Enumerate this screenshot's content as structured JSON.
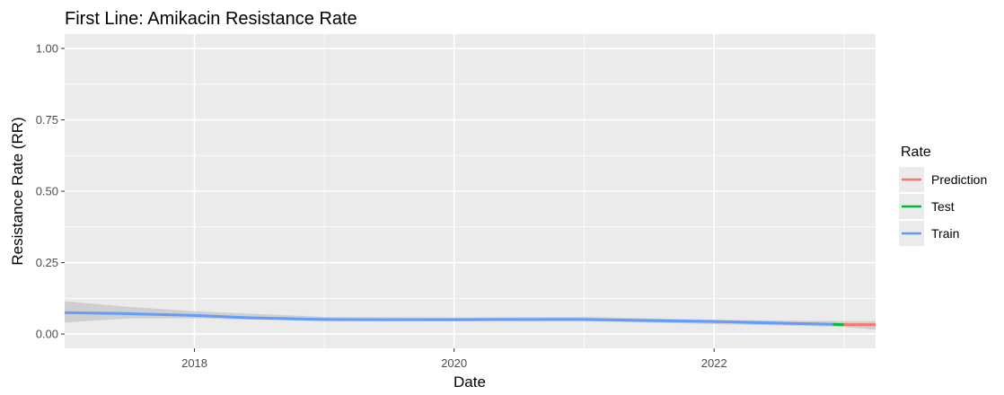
{
  "chart_data": {
    "type": "line",
    "title": "First Line: Amikacin Resistance Rate",
    "xlabel": "Date",
    "ylabel": "Resistance Rate (RR)",
    "xlim": [
      "2017-01-01",
      "2023-03-31"
    ],
    "ylim": [
      -0.05,
      1.05
    ],
    "x_ticks": [
      "2018",
      "2020",
      "2022"
    ],
    "y_ticks": [
      "0.00",
      "0.25",
      "0.50",
      "0.75",
      "1.00"
    ],
    "grid": true,
    "legend": {
      "title": "Rate",
      "position": "right",
      "entries": [
        "Prediction",
        "Test",
        "Train"
      ]
    },
    "confidence_band": {
      "x": [
        "2017-01-01",
        "2017-07-01",
        "2018-01-01",
        "2019-01-01",
        "2020-01-01",
        "2021-01-01",
        "2022-01-01",
        "2023-01-01",
        "2023-03-31"
      ],
      "lower": [
        0.04,
        0.055,
        0.055,
        0.045,
        0.045,
        0.045,
        0.035,
        0.025,
        0.015
      ],
      "upper": [
        0.115,
        0.095,
        0.08,
        0.06,
        0.058,
        0.06,
        0.05,
        0.045,
        0.045
      ]
    },
    "series": [
      {
        "name": "Train",
        "color": "#619cff",
        "x": [
          "2017-01-01",
          "2017-06-01",
          "2018-01-01",
          "2018-06-01",
          "2019-01-01",
          "2019-06-01",
          "2020-01-01",
          "2020-06-01",
          "2021-01-01",
          "2021-06-01",
          "2022-01-01",
          "2022-06-01",
          "2022-12-01"
        ],
        "values": [
          0.075,
          0.072,
          0.065,
          0.057,
          0.051,
          0.05,
          0.05,
          0.051,
          0.051,
          0.048,
          0.044,
          0.039,
          0.034
        ]
      },
      {
        "name": "Test",
        "color": "#00ba38",
        "x": [
          "2022-12-01",
          "2023-01-01"
        ],
        "values": [
          0.034,
          0.033
        ]
      },
      {
        "name": "Prediction",
        "color": "#f8766d",
        "x": [
          "2023-01-01",
          "2023-03-31"
        ],
        "values": [
          0.033,
          0.033
        ]
      }
    ],
    "colors": {
      "panel": "#ebebeb",
      "grid": "#ffffff",
      "band": "#c8c8c8"
    }
  }
}
